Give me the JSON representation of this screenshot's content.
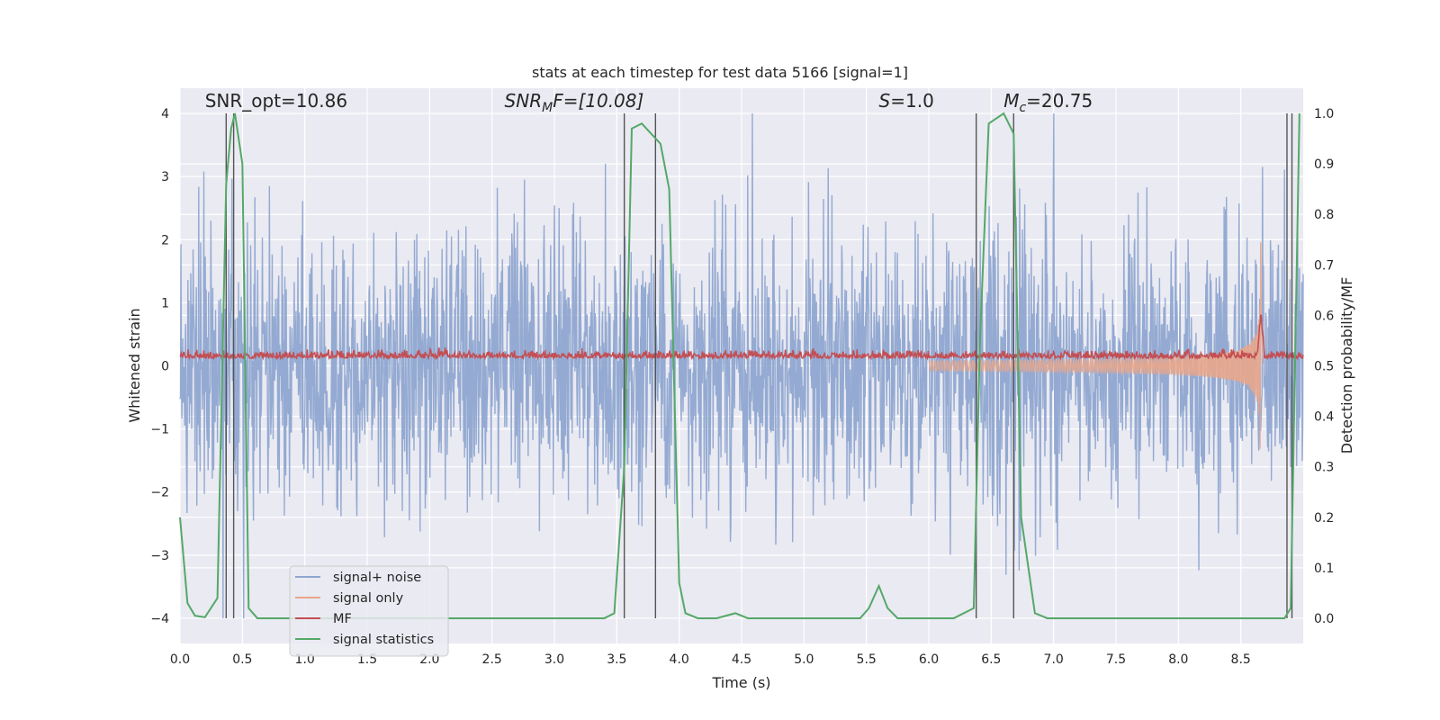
{
  "chart_data": {
    "type": "line",
    "title": "stats at each timestep for test data 5166 [signal=1]",
    "xlabel": "Time (s)",
    "ylabel_left": "Whitened strain",
    "ylabel_right": "Detection probability/MF",
    "xlim": [
      0,
      9.0
    ],
    "ylim_left": [
      -4.4,
      4.4
    ],
    "ylim_right": [
      -0.05,
      1.05
    ],
    "xticks": [
      "0.0",
      "0.5",
      "1.0",
      "1.5",
      "2.0",
      "2.5",
      "3.0",
      "3.5",
      "4.0",
      "4.5",
      "5.0",
      "5.5",
      "6.0",
      "6.5",
      "7.0",
      "7.5",
      "8.0",
      "8.5"
    ],
    "yticks_left": [
      "−4",
      "−3",
      "−2",
      "−1",
      "0",
      "1",
      "2",
      "3",
      "4"
    ],
    "yticks_right": [
      "0.0",
      "0.1",
      "0.2",
      "0.3",
      "0.4",
      "0.5",
      "0.6",
      "0.7",
      "0.8",
      "0.9",
      "1.0"
    ],
    "grid": true,
    "legend_position": "lower-left",
    "annotations": [
      {
        "text": "SNR_opt=10.86",
        "x": 0.2,
        "y": 4.1
      },
      {
        "prefix": "SNR",
        "sub": "M",
        "suffix": "F=[10.08]",
        "x": 2.6,
        "y": 4.1
      },
      {
        "prefix": "S",
        "suffix": "=1.0",
        "x": 5.6,
        "y": 4.1
      },
      {
        "prefix": "M",
        "sub": "c",
        "suffix": "=20.75",
        "x": 6.6,
        "y": 4.1
      }
    ],
    "vertical_lines_x": [
      0.37,
      0.43,
      3.56,
      3.81,
      6.38,
      6.68,
      8.87,
      8.91
    ],
    "series": [
      {
        "name": "signal+ noise",
        "color": "#8fa6d0",
        "description_values": {
          "typical_amplitude": 1.6,
          "peak_amplitude": 4.0
        }
      },
      {
        "name": "signal only",
        "color": "#e8a68b",
        "chirp_merger_time": 8.66,
        "max_amplitude": 2.0
      },
      {
        "name": "MF",
        "color": "#c44e52",
        "baseline_right_axis": 0.52,
        "peak": {
          "x": 8.66,
          "y": 0.6
        }
      },
      {
        "name": "signal statistics",
        "color": "#55a868",
        "axis": "right",
        "x": [
          0.0,
          0.06,
          0.12,
          0.2,
          0.3,
          0.37,
          0.41,
          0.44,
          0.5,
          0.55,
          0.62,
          0.75,
          1.0,
          2.0,
          3.0,
          3.4,
          3.48,
          3.56,
          3.62,
          3.7,
          3.85,
          3.92,
          4.0,
          4.05,
          4.15,
          4.3,
          4.45,
          4.55,
          4.7,
          5.0,
          5.45,
          5.52,
          5.6,
          5.67,
          5.75,
          5.9,
          6.2,
          6.36,
          6.41,
          6.48,
          6.6,
          6.68,
          6.74,
          6.85,
          6.95,
          7.5,
          8.0,
          8.5,
          8.85,
          8.9,
          8.97
        ],
        "y": [
          0.2,
          0.03,
          0.005,
          0.002,
          0.04,
          0.86,
          0.97,
          1.0,
          0.9,
          0.02,
          0.0,
          0.0,
          0.0,
          0.0,
          0.0,
          0.0,
          0.01,
          0.3,
          0.97,
          0.98,
          0.94,
          0.85,
          0.07,
          0.01,
          0.0,
          0.0,
          0.01,
          0.0,
          0.0,
          0.0,
          0.0,
          0.02,
          0.064,
          0.02,
          0.0,
          0.0,
          0.0,
          0.02,
          0.55,
          0.98,
          1.0,
          0.96,
          0.2,
          0.01,
          0.0,
          0.0,
          0.0,
          0.0,
          0.0,
          0.02,
          1.0
        ]
      }
    ]
  }
}
